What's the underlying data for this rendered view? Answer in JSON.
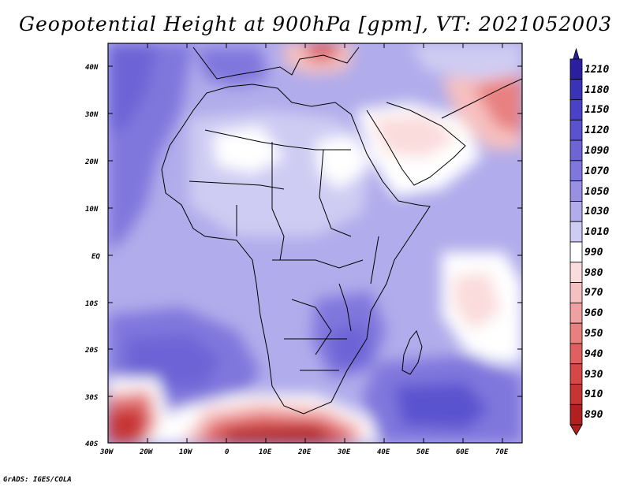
{
  "title": "Geopotential Height at 900hPa [gpm], VT: 2021052003",
  "footer": "GrADS: IGES/COLA",
  "lon_labels": [
    "30W",
    "20W",
    "10W",
    "0",
    "10E",
    "20E",
    "30E",
    "40E",
    "50E",
    "60E",
    "70E"
  ],
  "lat_labels": [
    "40N",
    "30N",
    "20N",
    "10N",
    "EQ",
    "10S",
    "20S",
    "30S",
    "40S"
  ],
  "colorbar": {
    "labels": [
      "1210",
      "1180",
      "1150",
      "1120",
      "1090",
      "1070",
      "1050",
      "1030",
      "1010",
      "990",
      "980",
      "970",
      "960",
      "950",
      "940",
      "930",
      "910",
      "890"
    ],
    "colors": [
      "#2a1f9e",
      "#3a33b8",
      "#4a42c6",
      "#5a52cf",
      "#6d64d6",
      "#8077dd",
      "#9890e3",
      "#b1aceb",
      "#cfccf3",
      "#ffffff",
      "#fbdcdc",
      "#f6c0c0",
      "#efa0a0",
      "#e88080",
      "#e06060",
      "#d64848",
      "#c83434",
      "#b02020"
    ]
  }
}
